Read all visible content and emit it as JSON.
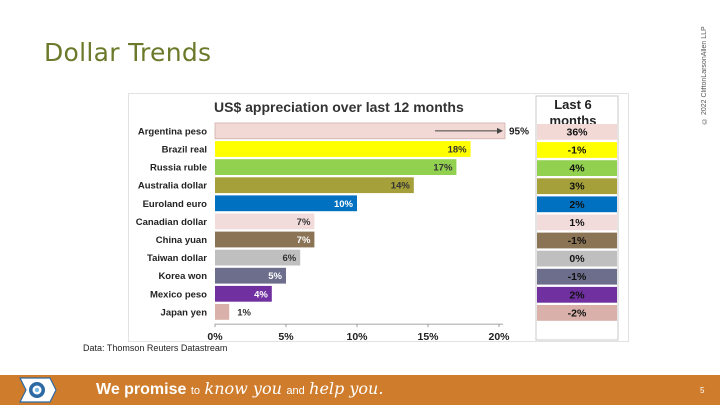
{
  "slide": {
    "title": "Dollar Trends",
    "copyright": "© 2022 CliftonLarsonAllen LLP",
    "source": "Data: Thomson Reuters Datastream",
    "page_number": "5"
  },
  "footer": {
    "promise_text": "We promise",
    "to_word": "to",
    "know_text": "know you",
    "and_word": "and",
    "help_text": "help you.",
    "bar_color": "#cf7c2c",
    "logo_icon": "cla-logo-icon"
  },
  "chart_data": {
    "type": "bar",
    "orientation": "horizontal",
    "title": "US$ appreciation over last 12 months",
    "side_panel_title_line1": "Last 6",
    "side_panel_title_line2": "months",
    "categories": [
      "Argentina peso",
      "Brazil real",
      "Russia ruble",
      "Australia dollar",
      "Euroland euro",
      "Canadian dollar",
      "China yuan",
      "Taiwan dollar",
      "Korea won",
      "Mexico peso",
      "Japan yen"
    ],
    "values": [
      95,
      18,
      17,
      14,
      10,
      7,
      7,
      6,
      5,
      4,
      1
    ],
    "value_labels": [
      "95%",
      "18%",
      "17%",
      "14%",
      "10%",
      "7%",
      "7%",
      "6%",
      "5%",
      "4%",
      "1%"
    ],
    "last_6_months": [
      "36%",
      "-1%",
      "4%",
      "3%",
      "2%",
      "1%",
      "-1%",
      "0%",
      "-1%",
      "2%",
      "-2%"
    ],
    "colors": [
      "#f2d9d6",
      "#ffff00",
      "#92d050",
      "#a5a03a",
      "#0070c0",
      "#f2dcdb",
      "#8b7355",
      "#bfbfbf",
      "#6d6e8c",
      "#7030a0",
      "#d9b1aa"
    ],
    "xaxis_ticks": [
      "0%",
      "5%",
      "10%",
      "15%",
      "20%"
    ],
    "xlim": [
      0,
      20
    ],
    "truncated_bar": "Argentina peso",
    "xlabel": "",
    "ylabel": ""
  }
}
